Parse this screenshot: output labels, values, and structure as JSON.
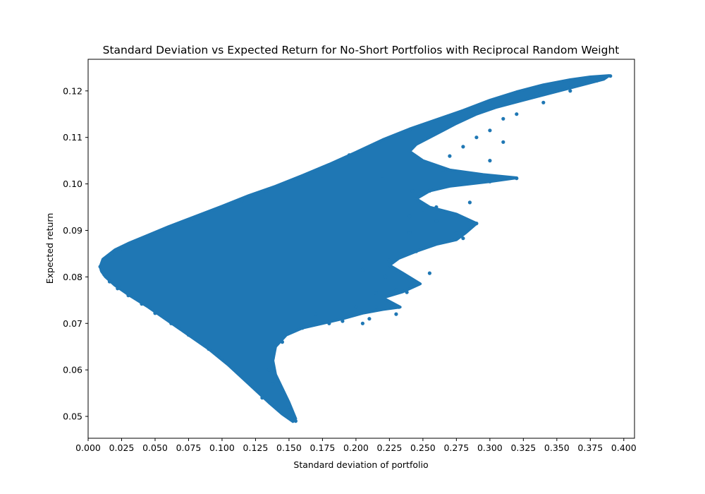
{
  "chart_data": {
    "type": "scatter",
    "title": "Standard Deviation vs Expected Return for No-Short Portfolios with Reciprocal Random Weight",
    "xlabel": "Standard deviation of portfolio",
    "ylabel": "Expected return",
    "xlim": [
      0.0,
      0.408
    ],
    "ylim": [
      0.0453,
      0.1268
    ],
    "x_ticks": [
      "0.000",
      "0.025",
      "0.050",
      "0.075",
      "0.100",
      "0.125",
      "0.150",
      "0.175",
      "0.200",
      "0.225",
      "0.250",
      "0.275",
      "0.300",
      "0.325",
      "0.350",
      "0.375",
      "0.400"
    ],
    "y_ticks": [
      "0.05",
      "0.06",
      "0.07",
      "0.08",
      "0.09",
      "0.10",
      "0.11",
      "0.12"
    ],
    "grid": false,
    "point_color": "#1f77b4",
    "series": [
      {
        "points": [
          [
            0.009,
            0.0822
          ],
          [
            0.01,
            0.0815
          ],
          [
            0.011,
            0.0832
          ],
          [
            0.012,
            0.0805
          ],
          [
            0.013,
            0.084
          ],
          [
            0.016,
            0.079
          ],
          [
            0.018,
            0.085
          ],
          [
            0.022,
            0.0775
          ],
          [
            0.025,
            0.0862
          ],
          [
            0.03,
            0.076
          ],
          [
            0.035,
            0.0876
          ],
          [
            0.04,
            0.0742
          ],
          [
            0.045,
            0.0888
          ],
          [
            0.05,
            0.0722
          ],
          [
            0.06,
            0.0905
          ],
          [
            0.062,
            0.07
          ],
          [
            0.075,
            0.0675
          ],
          [
            0.078,
            0.0925
          ],
          [
            0.09,
            0.0645
          ],
          [
            0.095,
            0.0945
          ],
          [
            0.105,
            0.0612
          ],
          [
            0.115,
            0.0965
          ],
          [
            0.12,
            0.0578
          ],
          [
            0.13,
            0.054
          ],
          [
            0.133,
            0.0985
          ],
          [
            0.14,
            0.052
          ],
          [
            0.148,
            0.0503
          ],
          [
            0.152,
            0.0494
          ],
          [
            0.155,
            0.049
          ],
          [
            0.15,
            0.0522
          ],
          [
            0.145,
            0.0545
          ],
          [
            0.138,
            0.057
          ],
          [
            0.135,
            0.06
          ],
          [
            0.138,
            0.0625
          ],
          [
            0.145,
            0.066
          ],
          [
            0.155,
            0.101
          ],
          [
            0.175,
            0.1035
          ],
          [
            0.195,
            0.1062
          ],
          [
            0.205,
            0.07
          ],
          [
            0.215,
            0.0735
          ],
          [
            0.215,
            0.1085
          ],
          [
            0.225,
            0.0745
          ],
          [
            0.232,
            0.0735
          ],
          [
            0.215,
            0.0765
          ],
          [
            0.23,
            0.0772
          ],
          [
            0.247,
            0.0785
          ],
          [
            0.222,
            0.08
          ],
          [
            0.205,
            0.0815
          ],
          [
            0.225,
            0.0835
          ],
          [
            0.24,
            0.1115
          ],
          [
            0.245,
            0.0855
          ],
          [
            0.265,
            0.0875
          ],
          [
            0.28,
            0.0883
          ],
          [
            0.275,
            0.0895
          ],
          [
            0.29,
            0.0915
          ],
          [
            0.26,
            0.092
          ],
          [
            0.24,
            0.093
          ],
          [
            0.25,
            0.0945
          ],
          [
            0.26,
            0.095
          ],
          [
            0.255,
            0.0985
          ],
          [
            0.28,
            0.1
          ],
          [
            0.3,
            0.1005
          ],
          [
            0.32,
            0.1012
          ],
          [
            0.29,
            0.102
          ],
          [
            0.265,
            0.103
          ],
          [
            0.27,
            0.106
          ],
          [
            0.28,
            0.108
          ],
          [
            0.29,
            0.11
          ],
          [
            0.3,
            0.1115
          ],
          [
            0.27,
            0.1145
          ],
          [
            0.31,
            0.114
          ],
          [
            0.32,
            0.115
          ],
          [
            0.3,
            0.1175
          ],
          [
            0.34,
            0.1175
          ],
          [
            0.335,
            0.1195
          ],
          [
            0.36,
            0.12
          ],
          [
            0.38,
            0.1222
          ],
          [
            0.39,
            0.1232
          ],
          [
            0.37,
            0.122
          ],
          [
            0.35,
            0.1205
          ],
          [
            0.23,
            0.072
          ],
          [
            0.21,
            0.071
          ],
          [
            0.2,
            0.0735
          ],
          [
            0.19,
            0.0705
          ],
          [
            0.18,
            0.07
          ],
          [
            0.17,
            0.072
          ],
          [
            0.16,
            0.069
          ],
          [
            0.3,
            0.105
          ],
          [
            0.31,
            0.109
          ],
          [
            0.285,
            0.096
          ],
          [
            0.24,
            0.0895
          ],
          [
            0.255,
            0.0808
          ],
          [
            0.238,
            0.0767
          ],
          [
            0.22,
            0.101
          ],
          [
            0.242,
            0.0985
          ]
        ]
      }
    ]
  }
}
